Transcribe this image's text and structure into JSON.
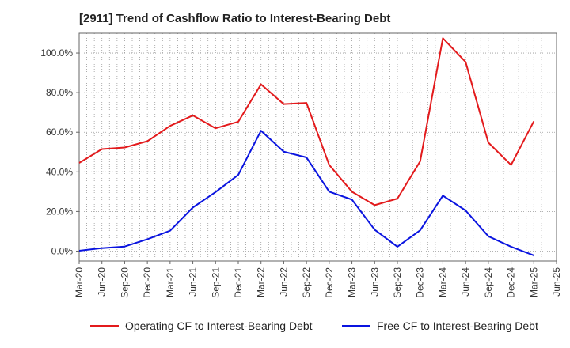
{
  "chart_data": {
    "type": "line",
    "title": "[2911]  Trend of Cashflow Ratio to Interest-Bearing Debt",
    "xlabel": "",
    "ylabel": "",
    "ylim": [
      -5,
      110
    ],
    "yticks": [
      0,
      20,
      40,
      60,
      80,
      100
    ],
    "ytick_labels": [
      "0.0%",
      "20.0%",
      "40.0%",
      "60.0%",
      "80.0%",
      "100.0%"
    ],
    "x_tick_labels": [
      "Mar-20",
      "Jun-20",
      "Sep-20",
      "Dec-20",
      "Mar-21",
      "Jun-21",
      "Sep-21",
      "Dec-21",
      "Mar-22",
      "Jun-22",
      "Sep-22",
      "Dec-22",
      "Mar-23",
      "Jun-23",
      "Sep-23",
      "Dec-23",
      "Mar-24",
      "Jun-24",
      "Sep-24",
      "Dec-24",
      "Mar-25",
      "Jun-25"
    ],
    "grid": true,
    "legend_position": "bottom",
    "x": [
      "Mar-20",
      "Jun-20",
      "Sep-20",
      "Dec-20",
      "Mar-21",
      "Jun-21",
      "Sep-21",
      "Dec-21",
      "Mar-22",
      "Jun-22",
      "Sep-22",
      "Dec-22",
      "Mar-23",
      "Jun-23",
      "Sep-23",
      "Dec-23",
      "Mar-24",
      "Jun-24",
      "Sep-24",
      "Dec-24",
      "Mar-25"
    ],
    "series": [
      {
        "name": "Operating CF to Interest-Bearing Debt",
        "color": "#e31a1c",
        "values": [
          44.5,
          51.5,
          52.3,
          55.5,
          63.2,
          68.5,
          62.0,
          65.3,
          84.2,
          74.2,
          74.8,
          43.5,
          30.0,
          23.2,
          26.5,
          45.3,
          107.5,
          95.5,
          54.8,
          43.5,
          65.5
        ]
      },
      {
        "name": "Free CF to Interest-Bearing Debt",
        "color": "#0a14e0",
        "values": [
          0.2,
          1.5,
          2.3,
          6.0,
          10.3,
          22.0,
          29.8,
          38.5,
          60.8,
          50.2,
          47.3,
          30.0,
          26.0,
          10.8,
          2.2,
          10.5,
          28.0,
          20.5,
          7.5,
          2.2,
          -2.2
        ]
      }
    ]
  }
}
